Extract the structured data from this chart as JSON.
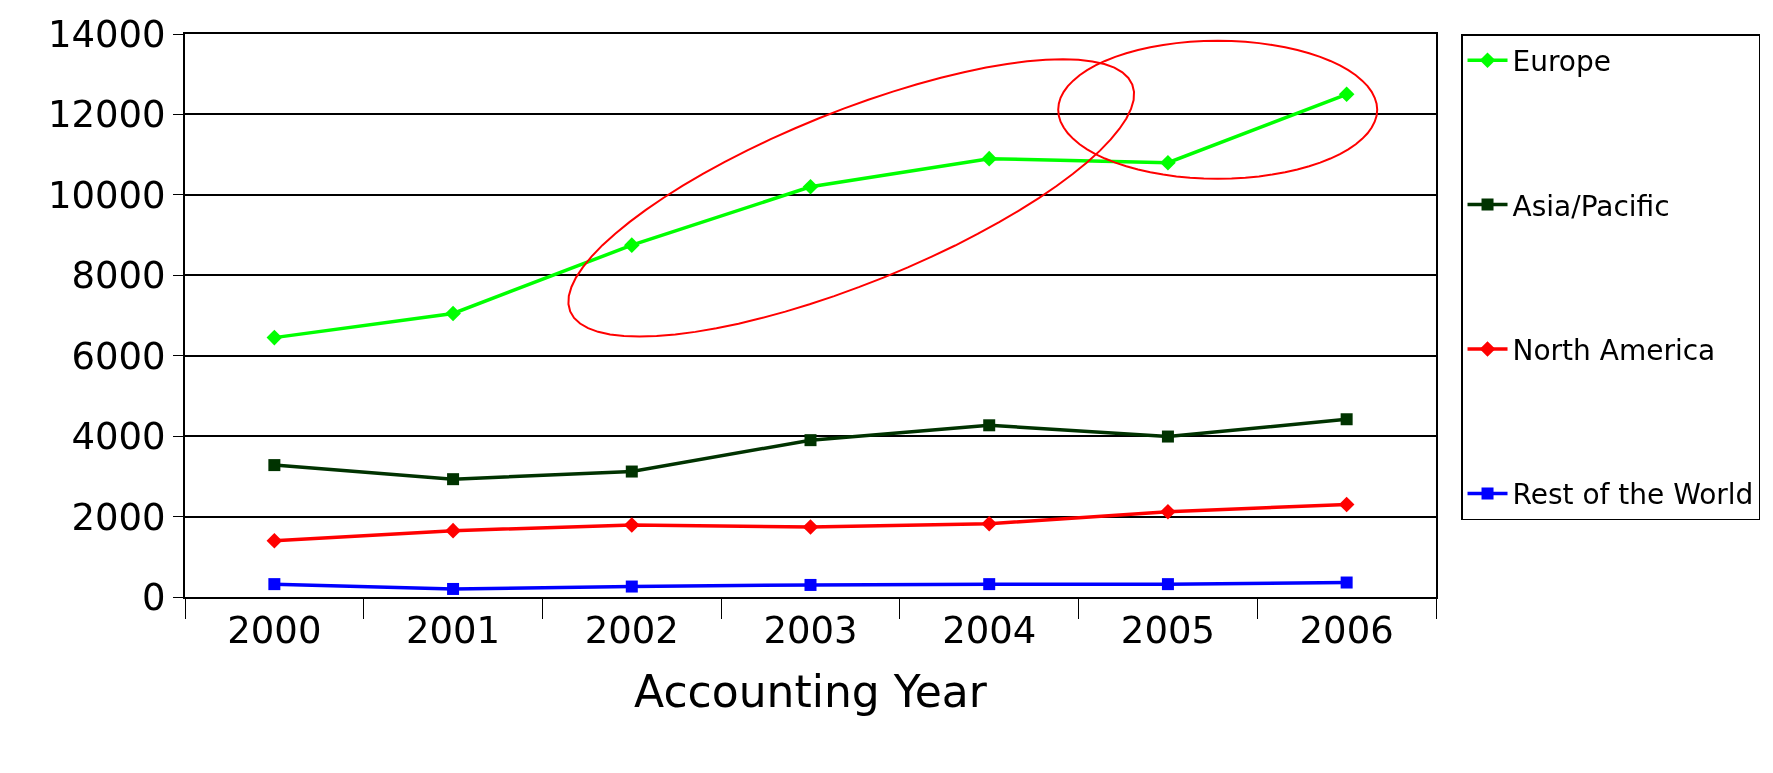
{
  "chart_data": {
    "type": "line",
    "xlabel": "Accounting Year",
    "categories": [
      "2000",
      "2001",
      "2002",
      "2003",
      "2004",
      "2005",
      "2006"
    ],
    "series": [
      {
        "name": "Europe",
        "color": "#00ff00",
        "marker": "diamond",
        "values": [
          6450,
          7050,
          8750,
          10200,
          10900,
          10800,
          12500
        ]
      },
      {
        "name": "Asia/Pacific",
        "color": "#003300",
        "marker": "square",
        "values": [
          3280,
          2930,
          3120,
          3900,
          4270,
          3990,
          4420
        ]
      },
      {
        "name": "North America",
        "color": "#ff0000",
        "marker": "diamond",
        "values": [
          1400,
          1650,
          1790,
          1740,
          1820,
          2120,
          2300
        ]
      },
      {
        "name": "Rest of the World",
        "color": "#0000ff",
        "marker": "square",
        "values": [
          320,
          200,
          260,
          300,
          320,
          320,
          360
        ]
      }
    ],
    "ylim": [
      0,
      14000
    ],
    "yticks": [
      0,
      2000,
      4000,
      6000,
      8000,
      10000,
      12000,
      14000
    ],
    "grid": "y",
    "legend": "right"
  }
}
